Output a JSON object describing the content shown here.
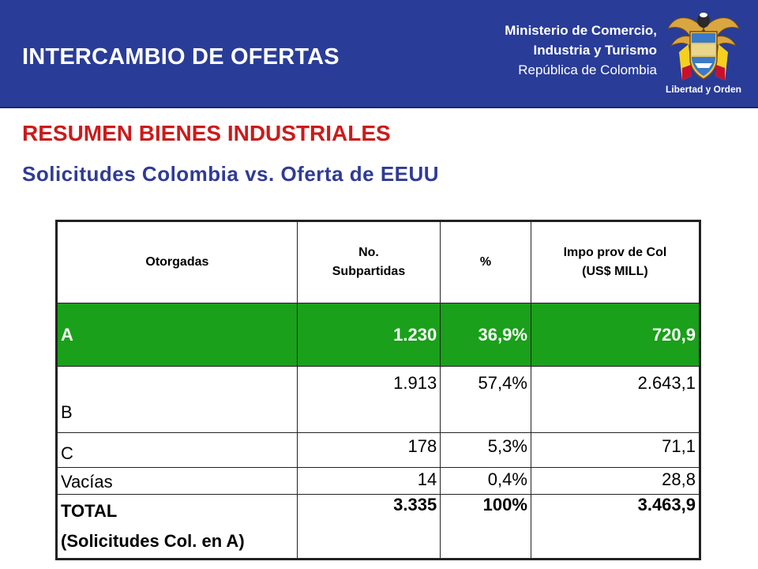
{
  "header": {
    "title": "INTERCAMBIO DE OFERTAS",
    "ministry_line1": "Ministerio de Comercio,",
    "ministry_line2": "Industria y Turismo",
    "ministry_line3": "República de Colombia",
    "crest_motto": "Libertad y Orden",
    "background_color": "#293c98"
  },
  "heading": "RESUMEN BIENES INDUSTRIALES",
  "subheading": "Solicitudes Colombia vs. Oferta de EEUU",
  "table": {
    "headers": {
      "col1": "Otorgadas",
      "col2_line1": "No.",
      "col2_line2": "Subpartidas",
      "col3": "%",
      "col4_line1": "Impo prov de Col",
      "col4_line2": "(US$ MILL)"
    },
    "highlight_color": "#1aa01a",
    "rows": [
      {
        "label": "A",
        "subpartidas": "1.230",
        "percent": "36,9%",
        "impo": "720,9"
      },
      {
        "label": "B",
        "subpartidas": "1.913",
        "percent": "57,4%",
        "impo": "2.643,1"
      },
      {
        "label": "C",
        "subpartidas": "178",
        "percent": "5,3%",
        "impo": "71,1"
      },
      {
        "label": "Vacías",
        "subpartidas": "14",
        "percent": "0,4%",
        "impo": "28,8"
      }
    ],
    "total": {
      "label_line1": "TOTAL",
      "label_line2": "(Solicitudes Col. en A)",
      "subpartidas": "3.335",
      "percent": "100%",
      "impo": "3.463,9"
    }
  }
}
